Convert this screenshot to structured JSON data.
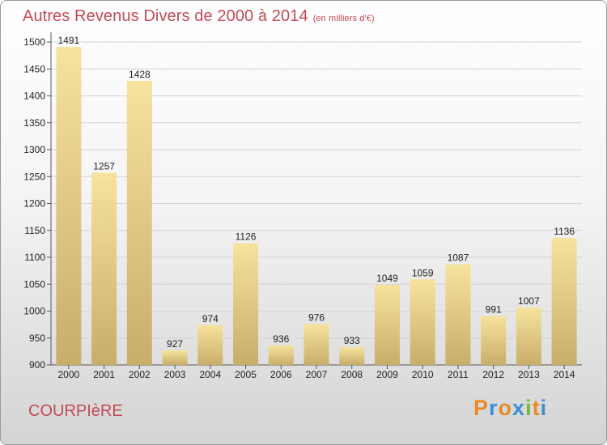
{
  "title": "Autres Revenus Divers de 2000 à 2014",
  "subtitle": "(en milliers d'€)",
  "commune": "COURPIèRE",
  "logo": {
    "letters": [
      "P",
      "r",
      "o",
      "x",
      "i",
      "t",
      "i"
    ],
    "colors": [
      "#e88a2a",
      "#3a8fd6",
      "#e88a2a",
      "#3a8fd6",
      "#7ab33a",
      "#e88a2a",
      "#3a8fd6"
    ]
  },
  "colors": {
    "bar_top": "#f6e39d",
    "bar_bottom": "#c9ad6a",
    "title": "#c34a55"
  },
  "chart_data": {
    "type": "bar",
    "title": "Autres Revenus Divers de 2000 à 2014",
    "subtitle": "(en milliers d'€)",
    "xlabel": "",
    "ylabel": "",
    "categories": [
      "2000",
      "2001",
      "2002",
      "2003",
      "2004",
      "2005",
      "2006",
      "2007",
      "2008",
      "2009",
      "2010",
      "2011",
      "2012",
      "2013",
      "2014"
    ],
    "values": [
      1491,
      1257,
      1428,
      927,
      974,
      1126,
      936,
      976,
      933,
      1049,
      1059,
      1087,
      991,
      1007,
      1136
    ],
    "ylim": [
      900,
      1500
    ],
    "yticks": [
      900,
      950,
      1000,
      1050,
      1100,
      1150,
      1200,
      1250,
      1300,
      1350,
      1400,
      1450,
      1500
    ],
    "grid": true,
    "legend": "none"
  }
}
